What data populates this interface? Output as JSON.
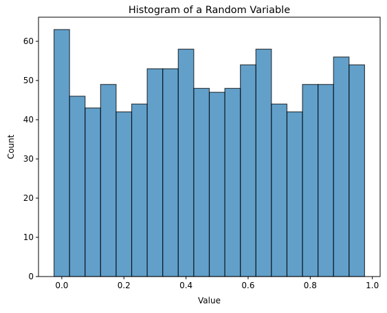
{
  "chart_data": {
    "type": "bar",
    "title": "Histogram of a Random Variable",
    "xlabel": "Value",
    "ylabel": "Count",
    "bin_edges": [
      -0.025,
      0.025,
      0.075,
      0.125,
      0.175,
      0.225,
      0.275,
      0.325,
      0.375,
      0.425,
      0.475,
      0.525,
      0.575,
      0.625,
      0.675,
      0.725,
      0.775,
      0.825,
      0.875,
      0.925,
      0.975
    ],
    "values": [
      63,
      46,
      43,
      49,
      42,
      44,
      53,
      53,
      58,
      48,
      47,
      48,
      54,
      58,
      44,
      42,
      49,
      49,
      56,
      54
    ],
    "xlim": [
      -0.075,
      1.025
    ],
    "ylim": [
      0,
      66.15
    ],
    "xticks": [
      0.0,
      0.2,
      0.4,
      0.6,
      0.8,
      1.0
    ],
    "xtick_labels": [
      "0.0",
      "0.2",
      "0.4",
      "0.6",
      "0.8",
      "1.0"
    ],
    "yticks": [
      0,
      10,
      20,
      30,
      40,
      50,
      60
    ],
    "ytick_labels": [
      "0",
      "10",
      "20",
      "30",
      "40",
      "50",
      "60"
    ],
    "bar_color": "#1f77b4",
    "bar_alpha": 0.7,
    "edge_color": "#000000",
    "grid": false,
    "legend": "none"
  }
}
